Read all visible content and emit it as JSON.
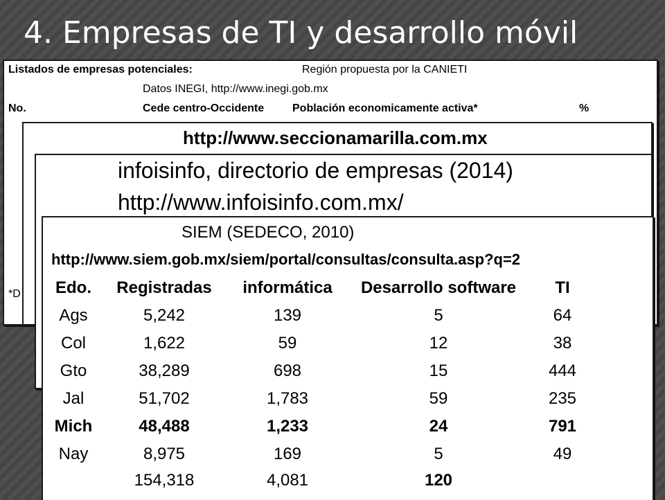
{
  "slide": {
    "title": "4. Empresas de TI y desarrollo móvil"
  },
  "panel1": {
    "listados": "Listados de empresas potenciales:",
    "region": "Región propuesta por la CANIETI",
    "datos": "Datos INEGI, http://www.inegi.gob.mx",
    "no": "No.",
    "cede": "Cede centro-Occidente",
    "poblacion": "Población economicamente activa*",
    "pct": "%",
    "footnote": "*D"
  },
  "panel2": {
    "url": "http://www.seccionamarilla.com.mx"
  },
  "panel3": {
    "title": "infoisinfo, directorio de empresas (2014)",
    "url": "http://www.infoisinfo.com.mx/"
  },
  "panel4": {
    "title": "SIEM (SEDECO, 2010)",
    "url": "http://www.siem.gob.mx/siem/portal/consultas/consulta.asp?q=2",
    "headers": [
      "Edo.",
      "Registradas",
      "informática",
      "Desarrollo software",
      "TI"
    ],
    "rows": [
      {
        "edo": "Ags",
        "registradas": "5,242",
        "informatica": "139",
        "desarrollo": "5",
        "ti": "64",
        "bold": false
      },
      {
        "edo": "Col",
        "registradas": "1,622",
        "informatica": "59",
        "desarrollo": "12",
        "ti": "38",
        "bold": false
      },
      {
        "edo": "Gto",
        "registradas": "38,289",
        "informatica": "698",
        "desarrollo": "15",
        "ti": "444",
        "bold": false
      },
      {
        "edo": "Jal",
        "registradas": "51,702",
        "informatica": "1,783",
        "desarrollo": "59",
        "ti": "235",
        "bold": false
      },
      {
        "edo": "Mich",
        "registradas": "48,488",
        "informatica": "1,233",
        "desarrollo": "24",
        "ti": "791",
        "bold": true
      },
      {
        "edo": "Nay",
        "registradas": "8,975",
        "informatica": "169",
        "desarrollo": "5",
        "ti": "49",
        "bold": false
      }
    ],
    "totals": {
      "edo": "",
      "registradas": "154,318",
      "informatica": "4,081",
      "desarrollo": "120",
      "ti": ""
    }
  }
}
